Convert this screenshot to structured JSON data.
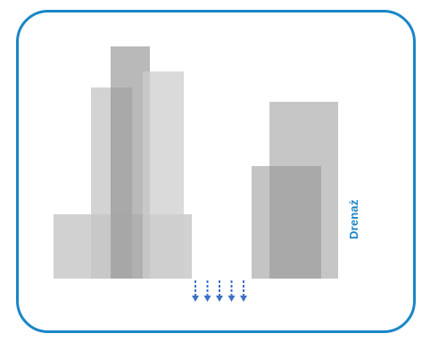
{
  "diagram": {
    "label": "Drenaż",
    "colors": {
      "frame": "#1a86c7",
      "label": "#1a86c7",
      "arrows": "#3d72c4",
      "blocks_light": "#cfcfcf",
      "blocks_mid": "#b6b6b6",
      "blocks_dark": "#9a9a9a"
    },
    "arrow_count": 5,
    "icons": [
      "down-arrow-icon"
    ]
  }
}
